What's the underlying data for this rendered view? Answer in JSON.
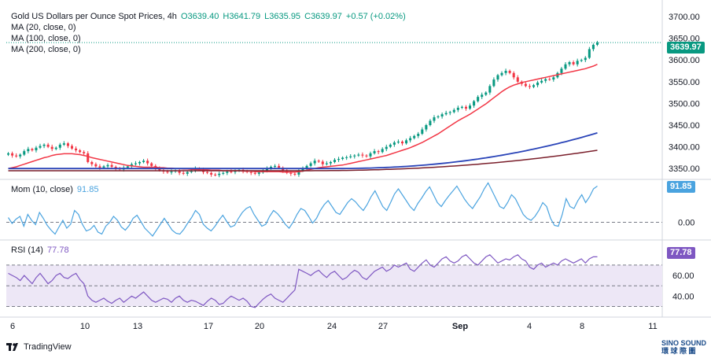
{
  "header": {
    "symbol": "Gold US Dollars per Ounce Spot Prices, 4h",
    "open": "O3639.40",
    "high": "H3641.79",
    "low": "L3635.95",
    "close": "C3639.97",
    "change": "+0.57 (+0.02%)",
    "ma20": "MA (20, close, 0)",
    "ma100": "MA (100, close, 0)",
    "ma200": "MA (200, close, 0)"
  },
  "mom_pane": {
    "title": "Mom (10, close)",
    "value": "91.85"
  },
  "rsi_pane": {
    "title": "RSI (14)",
    "value": "77.78"
  },
  "footer": {
    "brand": "TradingView",
    "watermark_line1": "SINO SOUND",
    "watermark_line2": "環 球 際 圖"
  },
  "colors": {
    "up": "#089981",
    "down": "#f23645",
    "ma20": "#f23645",
    "ma100": "#2a44b8",
    "ma200": "#7a1f2b",
    "mom": "#4aa3df",
    "rsi": "#7e57c2",
    "rsi_band": "#ede7f6"
  },
  "chart_data": [
    {
      "type": "candlestick",
      "title": "Gold US Dollars per Ounce Spot Prices, 4h",
      "x_ticks": [
        "6",
        "10",
        "13",
        "17",
        "20",
        "24",
        "27",
        "Sep",
        "4",
        "8",
        "11"
      ],
      "y_ticks": [
        "3350.00",
        "3400.00",
        "3450.00",
        "3500.00",
        "3550.00",
        "3600.00",
        "3650.00",
        "3700.00"
      ],
      "ylim": [
        3325,
        3720
      ],
      "last_price": "3639.97",
      "close_series": [
        3385,
        3380,
        3378,
        3382,
        3390,
        3395,
        3392,
        3398,
        3402,
        3405,
        3400,
        3395,
        3398,
        3405,
        3408,
        3402,
        3396,
        3392,
        3388,
        3385,
        3365,
        3360,
        3355,
        3352,
        3355,
        3358,
        3354,
        3350,
        3348,
        3352,
        3355,
        3360,
        3362,
        3365,
        3368,
        3362,
        3356,
        3350,
        3346,
        3343,
        3341,
        3343,
        3345,
        3340,
        3338,
        3342,
        3346,
        3350,
        3348,
        3342,
        3340,
        3336,
        3335,
        3338,
        3340,
        3343,
        3342,
        3345,
        3347,
        3344,
        3342,
        3340,
        3338,
        3341,
        3346,
        3350,
        3354,
        3356,
        3352,
        3345,
        3340,
        3338,
        3336,
        3345,
        3350,
        3356,
        3362,
        3368,
        3366,
        3360,
        3362,
        3365,
        3370,
        3372,
        3375,
        3376,
        3378,
        3380,
        3382,
        3380,
        3378,
        3385,
        3390,
        3388,
        3395,
        3400,
        3405,
        3410,
        3412,
        3408,
        3415,
        3420,
        3425,
        3430,
        3440,
        3450,
        3460,
        3468,
        3470,
        3475,
        3478,
        3480,
        3485,
        3490,
        3492,
        3488,
        3495,
        3505,
        3515,
        3520,
        3525,
        3540,
        3555,
        3565,
        3570,
        3575,
        3570,
        3560,
        3550,
        3545,
        3540,
        3538,
        3542,
        3548,
        3552,
        3556,
        3555,
        3560,
        3570,
        3580,
        3590,
        3595,
        3590,
        3598,
        3600,
        3605,
        3625,
        3635,
        3640
      ],
      "ma20_series": [
        3350,
        3352,
        3354,
        3357,
        3360,
        3363,
        3366,
        3369,
        3372,
        3375,
        3377,
        3380,
        3382,
        3383,
        3384,
        3384,
        3384,
        3383,
        3382,
        3380,
        3378,
        3375,
        3373,
        3371,
        3369,
        3367,
        3365,
        3363,
        3361,
        3359,
        3357,
        3356,
        3355,
        3354,
        3353,
        3353,
        3353,
        3353,
        3352,
        3352,
        3351,
        3351,
        3350,
        3350,
        3349,
        3349,
        3348,
        3348,
        3347,
        3347,
        3347,
        3346,
        3346,
        3346,
        3345,
        3345,
        3345,
        3345,
        3345,
        3344,
        3344,
        3344,
        3343,
        3343,
        3343,
        3343,
        3343,
        3343,
        3343,
        3342,
        3342,
        3342,
        3342,
        3343,
        3344,
        3346,
        3348,
        3350,
        3352,
        3353,
        3354,
        3355,
        3356,
        3357,
        3358,
        3360,
        3362,
        3364,
        3366,
        3368,
        3370,
        3372,
        3374,
        3376,
        3378,
        3380,
        3383,
        3386,
        3389,
        3392,
        3395,
        3398,
        3402,
        3406,
        3410,
        3415,
        3420,
        3425,
        3430,
        3436,
        3442,
        3448,
        3454,
        3460,
        3465,
        3470,
        3475,
        3481,
        3487,
        3493,
        3499,
        3506,
        3513,
        3520,
        3527,
        3533,
        3538,
        3542,
        3545,
        3548,
        3550,
        3552,
        3554,
        3556,
        3558,
        3560,
        3562,
        3564,
        3566,
        3568,
        3570,
        3572,
        3574,
        3576,
        3578,
        3580,
        3583,
        3586,
        3590
      ],
      "ma100_series_start": 3350,
      "ma100_series_end": 3432,
      "ma200_series_start": 3345,
      "ma200_series_end": 3392
    },
    {
      "type": "line",
      "title": "Mom (10, close)",
      "y_ticks": [
        "0.00"
      ],
      "last_value": "91.85",
      "values": [
        12,
        -3,
        8,
        15,
        -10,
        20,
        5,
        -6,
        25,
        10,
        -8,
        -20,
        -30,
        -12,
        5,
        -15,
        -5,
        30,
        20,
        -5,
        -22,
        -18,
        -8,
        -25,
        -30,
        -10,
        0,
        15,
        5,
        -12,
        -20,
        -8,
        10,
        18,
        2,
        -15,
        -25,
        -35,
        -20,
        -5,
        10,
        -5,
        -20,
        -28,
        -30,
        -18,
        -2,
        12,
        30,
        20,
        -5,
        -15,
        -22,
        -10,
        5,
        18,
        2,
        -12,
        -8,
        10,
        25,
        35,
        40,
        20,
        5,
        -10,
        -5,
        15,
        30,
        22,
        10,
        -5,
        -15,
        0,
        20,
        35,
        30,
        15,
        -2,
        10,
        30,
        45,
        55,
        40,
        25,
        20,
        35,
        50,
        60,
        52,
        40,
        30,
        45,
        65,
        80,
        60,
        40,
        30,
        50,
        72,
        85,
        70,
        55,
        40,
        30,
        48,
        62,
        78,
        90,
        70,
        50,
        40,
        55,
        68,
        80,
        92,
        75,
        58,
        45,
        35,
        50,
        65,
        85,
        100,
        80,
        60,
        40,
        35,
        50,
        70,
        60,
        40,
        20,
        10,
        5,
        15,
        30,
        50,
        40,
        10,
        -8,
        -10,
        20,
        60,
        40,
        35,
        55,
        70,
        50,
        65,
        85,
        92
      ]
    },
    {
      "type": "line",
      "title": "RSI (14)",
      "y_ticks": [
        "40.00",
        "60.00"
      ],
      "band": [
        30,
        70
      ],
      "last_value": "77.78",
      "values": [
        62,
        60,
        58,
        55,
        60,
        56,
        52,
        58,
        62,
        57,
        52,
        55,
        60,
        62,
        58,
        57,
        60,
        62,
        56,
        52,
        40,
        36,
        34,
        36,
        38,
        35,
        33,
        36,
        38,
        34,
        37,
        40,
        38,
        41,
        44,
        40,
        36,
        34,
        36,
        38,
        37,
        34,
        38,
        40,
        36,
        34,
        36,
        35,
        33,
        31,
        35,
        38,
        36,
        32,
        33,
        37,
        40,
        38,
        36,
        38,
        35,
        30,
        29,
        33,
        37,
        40,
        42,
        38,
        36,
        34,
        38,
        42,
        46,
        66,
        64,
        62,
        60,
        63,
        65,
        61,
        58,
        62,
        64,
        60,
        56,
        58,
        62,
        65,
        63,
        58,
        56,
        60,
        64,
        66,
        68,
        64,
        66,
        70,
        68,
        70,
        72,
        66,
        64,
        68,
        72,
        75,
        70,
        68,
        72,
        76,
        78,
        74,
        72,
        74,
        78,
        80,
        76,
        72,
        70,
        74,
        78,
        80,
        76,
        72,
        74,
        76,
        75,
        78,
        80,
        76,
        74,
        68,
        66,
        70,
        72,
        68,
        70,
        72,
        70,
        74,
        76,
        74,
        72,
        74,
        76,
        72,
        76,
        78,
        78
      ]
    }
  ]
}
